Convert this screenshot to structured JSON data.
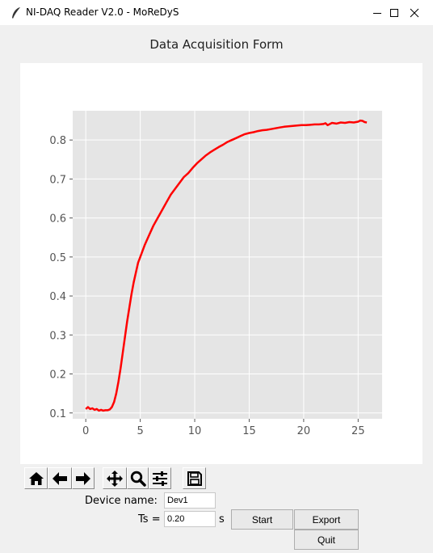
{
  "window": {
    "title": "NI-DAQ Reader V2.0 - MoReDyS",
    "app_icon": "feather-icon"
  },
  "form": {
    "title": "Data Acquisition Form"
  },
  "toolbar": {
    "icons": [
      "home-icon",
      "back-arrow-icon",
      "forward-arrow-icon",
      "pan-icon",
      "zoom-icon",
      "configure-subplots-icon",
      "save-icon"
    ]
  },
  "controls": {
    "device_label": "Device name:",
    "device_value": "Dev1",
    "ts_label": "Ts =",
    "ts_value": "0.20",
    "ts_unit": "s",
    "start_label": "Start",
    "export_label": "Export",
    "quit_label": "Quit"
  },
  "colors": {
    "line": "#ff0000",
    "plot_bg": "#e5e5e5",
    "grid": "#ffffff"
  },
  "chart_data": {
    "type": "line",
    "title": "",
    "xlabel": "",
    "ylabel": "",
    "xlim": [
      -1.2,
      27.2
    ],
    "ylim": [
      0.085,
      0.875
    ],
    "xticks": [
      0,
      5,
      10,
      15,
      20,
      25
    ],
    "yticks": [
      0.1,
      0.2,
      0.3,
      0.4,
      0.5,
      0.6,
      0.7,
      0.8
    ],
    "grid": true,
    "series": [
      {
        "x": [
          0,
          0.2,
          0.4,
          0.6,
          0.8,
          1.0,
          1.2,
          1.4,
          1.6,
          1.8,
          2.0,
          2.2,
          2.4,
          2.6,
          2.8,
          3.0,
          3.2,
          3.4,
          3.6,
          3.8,
          4.0,
          4.2,
          4.4,
          4.6,
          4.8,
          5.0,
          5.4,
          5.8,
          6.2,
          6.6,
          7.0,
          7.4,
          7.8,
          8.2,
          8.6,
          9.0,
          9.4,
          9.8,
          10.2,
          10.6,
          11.0,
          11.4,
          11.8,
          12.2,
          12.6,
          13.0,
          13.4,
          13.8,
          14.2,
          14.6,
          15.0,
          15.4,
          15.8,
          16.2,
          16.6,
          17.0,
          17.4,
          17.8,
          18.2,
          18.6,
          19.0,
          19.4,
          19.8,
          20.2,
          20.6,
          21.0,
          21.4,
          21.8,
          22.0,
          22.2,
          22.6,
          23.0,
          23.4,
          23.8,
          24.2,
          24.6,
          25.0,
          25.2,
          25.4,
          25.6,
          25.8
        ],
        "y": [
          0.11,
          0.115,
          0.11,
          0.112,
          0.108,
          0.11,
          0.106,
          0.108,
          0.106,
          0.107,
          0.107,
          0.109,
          0.115,
          0.128,
          0.15,
          0.18,
          0.215,
          0.255,
          0.295,
          0.335,
          0.37,
          0.405,
          0.435,
          0.46,
          0.485,
          0.5,
          0.53,
          0.555,
          0.58,
          0.6,
          0.62,
          0.64,
          0.66,
          0.675,
          0.69,
          0.705,
          0.715,
          0.728,
          0.74,
          0.75,
          0.76,
          0.768,
          0.775,
          0.782,
          0.788,
          0.795,
          0.8,
          0.805,
          0.81,
          0.815,
          0.818,
          0.82,
          0.823,
          0.825,
          0.826,
          0.828,
          0.83,
          0.832,
          0.834,
          0.835,
          0.836,
          0.837,
          0.838,
          0.838,
          0.839,
          0.84,
          0.84,
          0.841,
          0.843,
          0.838,
          0.844,
          0.842,
          0.845,
          0.844,
          0.846,
          0.845,
          0.847,
          0.85,
          0.849,
          0.846,
          0.845
        ]
      }
    ]
  }
}
